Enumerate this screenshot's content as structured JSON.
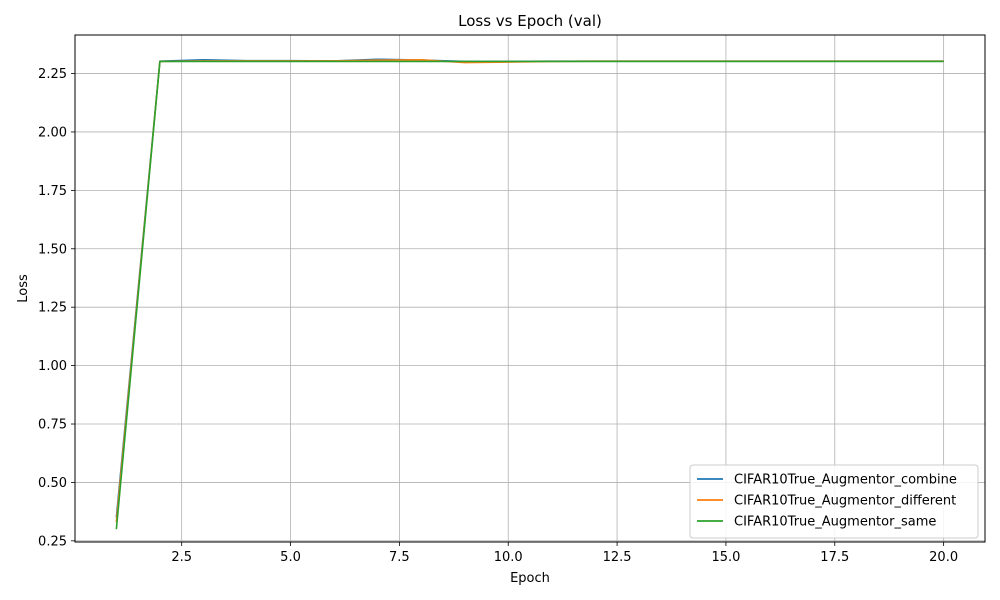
{
  "chart_data": {
    "type": "line",
    "title": "Loss vs Epoch (val)",
    "xlabel": "Epoch",
    "ylabel": "Loss",
    "xlim": [
      0.05,
      20.95
    ],
    "ylim": [
      0.245,
      2.415
    ],
    "xticks": [
      2.5,
      5.0,
      7.5,
      10.0,
      12.5,
      15.0,
      17.5,
      20.0
    ],
    "xtick_labels": [
      "2.5",
      "5.0",
      "7.5",
      "10.0",
      "12.5",
      "15.0",
      "17.5",
      "20.0"
    ],
    "yticks": [
      0.25,
      0.5,
      0.75,
      1.0,
      1.25,
      1.5,
      1.75,
      2.0,
      2.25
    ],
    "ytick_labels": [
      "0.25",
      "0.50",
      "0.75",
      "1.00",
      "1.25",
      "1.50",
      "1.75",
      "2.00",
      "2.25"
    ],
    "grid": true,
    "legend_position": "bottom-right",
    "x": [
      1,
      2,
      3,
      4,
      5,
      6,
      7,
      8,
      9,
      10,
      11,
      12,
      13,
      14,
      15,
      16,
      17,
      18,
      19,
      20
    ],
    "series": [
      {
        "name": "CIFAR10True_Augmentor_combine",
        "color": "#1f77b4",
        "values": [
          0.35,
          2.303,
          2.309,
          2.305,
          2.305,
          2.304,
          2.311,
          2.308,
          2.302,
          2.302,
          2.303,
          2.303,
          2.303,
          2.303,
          2.303,
          2.303,
          2.303,
          2.303,
          2.303,
          2.303
        ]
      },
      {
        "name": "CIFAR10True_Augmentor_different",
        "color": "#ff7f0e",
        "values": [
          0.33,
          2.302,
          2.304,
          2.304,
          2.304,
          2.304,
          2.307,
          2.309,
          2.297,
          2.299,
          2.302,
          2.303,
          2.303,
          2.303,
          2.303,
          2.303,
          2.303,
          2.303,
          2.303,
          2.303
        ]
      },
      {
        "name": "CIFAR10True_Augmentor_same",
        "color": "#2ca02c",
        "values": [
          0.3,
          2.302,
          2.302,
          2.302,
          2.302,
          2.302,
          2.302,
          2.302,
          2.302,
          2.302,
          2.302,
          2.302,
          2.302,
          2.302,
          2.302,
          2.302,
          2.302,
          2.302,
          2.302,
          2.302
        ]
      }
    ]
  }
}
